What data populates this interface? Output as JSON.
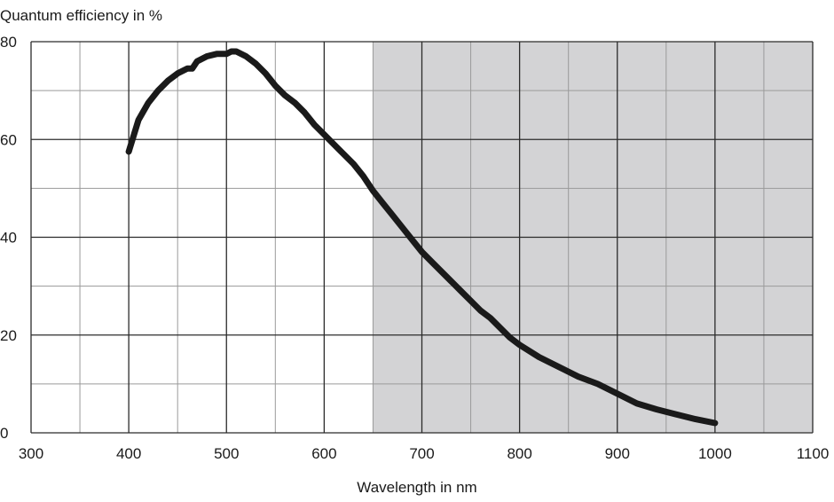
{
  "chart_data": {
    "type": "line",
    "title": "",
    "xlabel": "Wavelength in nm",
    "ylabel": "Quantum efficiency in %",
    "xlim": [
      300,
      1100
    ],
    "ylim": [
      0,
      80
    ],
    "x_ticks": [
      300,
      400,
      500,
      600,
      700,
      800,
      900,
      1000,
      1100
    ],
    "y_ticks": [
      0,
      20,
      40,
      60,
      80
    ],
    "x_minor_step": 50,
    "y_minor_step": 10,
    "grid": true,
    "shaded_region": {
      "x_from": 650,
      "x_to": 1100
    },
    "colors": {
      "line": "#1a1a1a",
      "shade": "#d3d3d5",
      "grid_major": "#2b2b2b",
      "grid_minor": "#9a9a9a"
    },
    "series": [
      {
        "x": [
          400,
          410,
          420,
          430,
          440,
          450,
          460,
          465,
          470,
          480,
          490,
          500,
          505,
          510,
          520,
          530,
          540,
          550,
          560,
          570,
          580,
          590,
          600,
          610,
          620,
          630,
          640,
          650,
          660,
          670,
          680,
          690,
          700,
          710,
          720,
          730,
          740,
          750,
          760,
          770,
          780,
          790,
          800,
          820,
          840,
          860,
          880,
          900,
          920,
          940,
          960,
          980,
          1000
        ],
        "values": [
          57.5,
          64,
          67.5,
          70,
          72,
          73.5,
          74.5,
          74.5,
          76,
          77,
          77.5,
          77.5,
          78,
          78,
          77,
          75.5,
          73.5,
          71,
          69,
          67.5,
          65.5,
          63,
          61,
          59,
          57,
          55,
          52.5,
          49.5,
          47,
          44.5,
          42,
          39.5,
          37,
          35,
          33,
          31,
          29,
          27,
          25,
          23.5,
          21.5,
          19.5,
          18,
          15.5,
          13.5,
          11.5,
          10,
          8,
          6,
          4.8,
          3.8,
          2.8,
          2
        ]
      }
    ]
  }
}
